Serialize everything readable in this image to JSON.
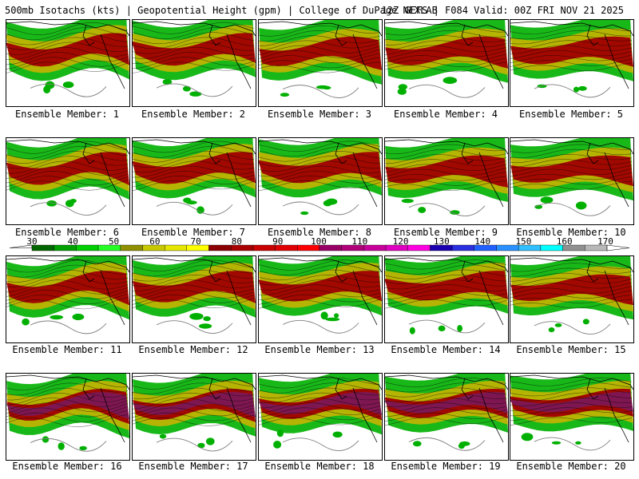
{
  "header": {
    "left_title": "500mb Isotachs (kts) | Geopotential Height (gpm) | College of DuPage NEXLAB",
    "right_title": "12Z GEFS | F084 Valid: 00Z FRI NOV 21 2025"
  },
  "panels": [
    {
      "member": 1,
      "caption": "Ensemble Member: 1"
    },
    {
      "member": 2,
      "caption": "Ensemble Member: 2"
    },
    {
      "member": 3,
      "caption": "Ensemble Member: 3"
    },
    {
      "member": 4,
      "caption": "Ensemble Member: 4"
    },
    {
      "member": 5,
      "caption": "Ensemble Member: 5"
    },
    {
      "member": 6,
      "caption": "Ensemble Member: 6"
    },
    {
      "member": 7,
      "caption": "Ensemble Member: 7"
    },
    {
      "member": 8,
      "caption": "Ensemble Member: 8"
    },
    {
      "member": 9,
      "caption": "Ensemble Member: 9"
    },
    {
      "member": 10,
      "caption": "Ensemble Member: 10"
    },
    {
      "member": 11,
      "caption": "Ensemble Member: 11"
    },
    {
      "member": 12,
      "caption": "Ensemble Member: 12"
    },
    {
      "member": 13,
      "caption": "Ensemble Member: 13"
    },
    {
      "member": 14,
      "caption": "Ensemble Member: 14"
    },
    {
      "member": 15,
      "caption": "Ensemble Member: 15"
    },
    {
      "member": 16,
      "caption": "Ensemble Member: 16"
    },
    {
      "member": 17,
      "caption": "Ensemble Member: 17"
    },
    {
      "member": 18,
      "caption": "Ensemble Member: 18"
    },
    {
      "member": 19,
      "caption": "Ensemble Member: 19"
    },
    {
      "member": 20,
      "caption": "Ensemble Member: 20"
    }
  ],
  "colorbar": {
    "labels": [
      "30",
      "40",
      "50",
      "60",
      "70",
      "80",
      "90",
      "100",
      "110",
      "120",
      "130",
      "140",
      "150",
      "160",
      "170"
    ],
    "colors": [
      "#006600",
      "#00a000",
      "#00d000",
      "#26ff26",
      "#8f8f00",
      "#c8c800",
      "#e6e600",
      "#ffff00",
      "#8b0000",
      "#a80000",
      "#c80000",
      "#e00000",
      "#ff0000",
      "#990066",
      "#b0007a",
      "#c8009a",
      "#e000c0",
      "#ff00e0",
      "#1a00b0",
      "#2a30e0",
      "#2060ff",
      "#2a90ff",
      "#30c0ff",
      "#00ffff",
      "#909090",
      "#b8b8b8"
    ],
    "min": 30,
    "max": 170
  },
  "colors": {
    "wind_low": "#00b000",
    "wind_mid": "#c8b400",
    "wind_high": "#a00000",
    "wind_core": "#7a1a5a",
    "height_contour": "#000000",
    "coastline": "#808080"
  }
}
